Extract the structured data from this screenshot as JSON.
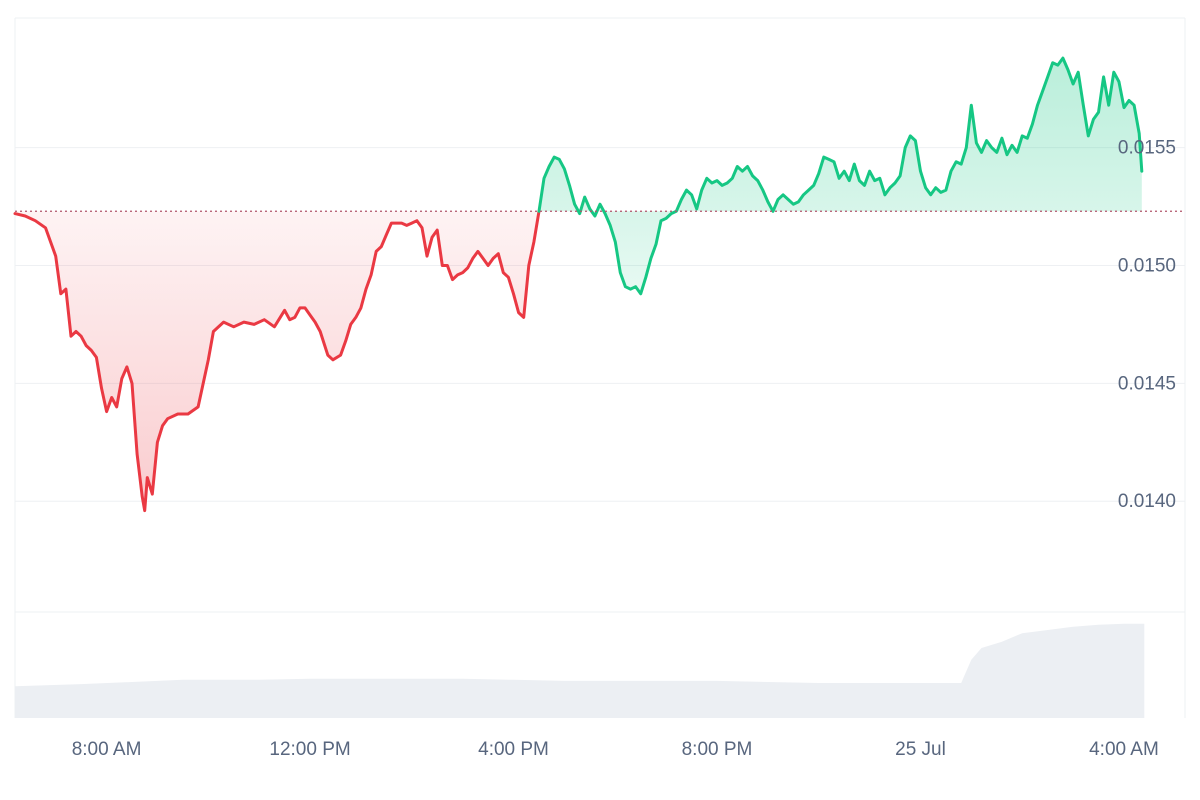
{
  "chart_data": {
    "type": "area",
    "title": "",
    "xlabel": "",
    "ylabel": "",
    "baseline": 0.01523,
    "ylim": [
      0.01353,
      0.01605
    ],
    "xlim": [
      6.2,
      29.2
    ],
    "x_axis_unit": "hours since 24 Jul 00:00",
    "x_ticks": [
      {
        "x": 8,
        "label": "8:00 AM"
      },
      {
        "x": 12,
        "label": "12:00 PM"
      },
      {
        "x": 16,
        "label": "4:00 PM"
      },
      {
        "x": 20,
        "label": "8:00 PM"
      },
      {
        "x": 24,
        "label": "25 Jul"
      },
      {
        "x": 28,
        "label": "4:00 AM"
      }
    ],
    "y_ticks": [
      {
        "y": 0.0155,
        "label": "0.0155"
      },
      {
        "y": 0.015,
        "label": "0.0150"
      },
      {
        "y": 0.0145,
        "label": "0.0145"
      },
      {
        "y": 0.014,
        "label": "0.0140"
      }
    ],
    "grid": true,
    "colors": {
      "up_line": "#16c784",
      "up_fill": "#16c784",
      "down_line": "#ea3943",
      "down_fill": "#ea3943",
      "baseline": "#b0546a",
      "grid": "#eef0f3",
      "tick_text": "#58667e",
      "volume": "#eceff3"
    },
    "series": [
      {
        "points": [
          [
            6.2,
            0.01522
          ],
          [
            6.4,
            0.01521
          ],
          [
            6.6,
            0.01519
          ],
          [
            6.8,
            0.01516
          ],
          [
            7.0,
            0.01504
          ],
          [
            7.1,
            0.01488
          ],
          [
            7.2,
            0.0149
          ],
          [
            7.3,
            0.0147
          ],
          [
            7.4,
            0.01472
          ],
          [
            7.5,
            0.0147
          ],
          [
            7.6,
            0.01466
          ],
          [
            7.7,
            0.01464
          ],
          [
            7.8,
            0.01461
          ],
          [
            7.9,
            0.01448
          ],
          [
            8.0,
            0.01438
          ],
          [
            8.1,
            0.01444
          ],
          [
            8.2,
            0.0144
          ],
          [
            8.3,
            0.01452
          ],
          [
            8.4,
            0.01457
          ],
          [
            8.5,
            0.0145
          ],
          [
            8.6,
            0.0142
          ],
          [
            8.7,
            0.01402
          ],
          [
            8.75,
            0.01396
          ],
          [
            8.8,
            0.0141
          ],
          [
            8.9,
            0.01403
          ],
          [
            9.0,
            0.01425
          ],
          [
            9.1,
            0.01432
          ],
          [
            9.2,
            0.01435
          ],
          [
            9.4,
            0.01437
          ],
          [
            9.6,
            0.01437
          ],
          [
            9.8,
            0.0144
          ],
          [
            10.0,
            0.0146
          ],
          [
            10.1,
            0.01472
          ],
          [
            10.3,
            0.01476
          ],
          [
            10.5,
            0.01474
          ],
          [
            10.7,
            0.01476
          ],
          [
            10.9,
            0.01475
          ],
          [
            11.1,
            0.01477
          ],
          [
            11.3,
            0.01474
          ],
          [
            11.5,
            0.01481
          ],
          [
            11.6,
            0.01477
          ],
          [
            11.7,
            0.01478
          ],
          [
            11.8,
            0.01482
          ],
          [
            11.9,
            0.01482
          ],
          [
            12.0,
            0.01479
          ],
          [
            12.1,
            0.01476
          ],
          [
            12.2,
            0.01472
          ],
          [
            12.35,
            0.01462
          ],
          [
            12.45,
            0.0146
          ],
          [
            12.6,
            0.01462
          ],
          [
            12.7,
            0.01468
          ],
          [
            12.8,
            0.01475
          ],
          [
            12.9,
            0.01478
          ],
          [
            13.0,
            0.01482
          ],
          [
            13.1,
            0.0149
          ],
          [
            13.2,
            0.01496
          ],
          [
            13.3,
            0.01506
          ],
          [
            13.4,
            0.01508
          ],
          [
            13.5,
            0.01513
          ],
          [
            13.6,
            0.01518
          ],
          [
            13.8,
            0.01518
          ],
          [
            13.9,
            0.01517
          ],
          [
            14.0,
            0.01518
          ],
          [
            14.1,
            0.01519
          ],
          [
            14.2,
            0.01516
          ],
          [
            14.3,
            0.01504
          ],
          [
            14.4,
            0.01512
          ],
          [
            14.5,
            0.01515
          ],
          [
            14.6,
            0.015
          ],
          [
            14.7,
            0.015
          ],
          [
            14.8,
            0.01494
          ],
          [
            14.9,
            0.01496
          ],
          [
            15.0,
            0.01497
          ],
          [
            15.1,
            0.01499
          ],
          [
            15.2,
            0.01503
          ],
          [
            15.3,
            0.01506
          ],
          [
            15.4,
            0.01503
          ],
          [
            15.5,
            0.015
          ],
          [
            15.6,
            0.01503
          ],
          [
            15.7,
            0.01505
          ],
          [
            15.8,
            0.01497
          ],
          [
            15.9,
            0.01495
          ],
          [
            16.0,
            0.01488
          ],
          [
            16.1,
            0.0148
          ],
          [
            16.2,
            0.01478
          ],
          [
            16.3,
            0.015
          ],
          [
            16.4,
            0.0151
          ],
          [
            16.5,
            0.01523
          ]
        ]
      },
      {
        "points": [
          [
            16.5,
            0.01523
          ],
          [
            16.6,
            0.01537
          ],
          [
            16.7,
            0.01542
          ],
          [
            16.8,
            0.01546
          ],
          [
            16.9,
            0.01545
          ],
          [
            17.0,
            0.01541
          ],
          [
            17.1,
            0.01534
          ],
          [
            17.2,
            0.01526
          ],
          [
            17.3,
            0.01522
          ],
          [
            17.4,
            0.01529
          ],
          [
            17.5,
            0.01524
          ],
          [
            17.6,
            0.01521
          ],
          [
            17.7,
            0.01526
          ],
          [
            17.8,
            0.01522
          ],
          [
            17.9,
            0.01517
          ],
          [
            18.0,
            0.0151
          ],
          [
            18.1,
            0.01497
          ],
          [
            18.2,
            0.01491
          ],
          [
            18.3,
            0.0149
          ],
          [
            18.4,
            0.01491
          ],
          [
            18.5,
            0.01488
          ],
          [
            18.6,
            0.01495
          ],
          [
            18.7,
            0.01503
          ],
          [
            18.8,
            0.01509
          ],
          [
            18.9,
            0.01519
          ],
          [
            19.0,
            0.0152
          ],
          [
            19.1,
            0.01522
          ],
          [
            19.2,
            0.01523
          ],
          [
            19.3,
            0.01528
          ],
          [
            19.4,
            0.01532
          ],
          [
            19.5,
            0.0153
          ],
          [
            19.6,
            0.01524
          ],
          [
            19.7,
            0.01532
          ],
          [
            19.8,
            0.01537
          ],
          [
            19.9,
            0.01535
          ],
          [
            20.0,
            0.01536
          ],
          [
            20.1,
            0.01534
          ],
          [
            20.2,
            0.01535
          ],
          [
            20.3,
            0.01537
          ],
          [
            20.4,
            0.01542
          ],
          [
            20.5,
            0.0154
          ],
          [
            20.6,
            0.01542
          ],
          [
            20.7,
            0.01538
          ],
          [
            20.8,
            0.01536
          ],
          [
            20.9,
            0.01532
          ],
          [
            21.0,
            0.01527
          ],
          [
            21.1,
            0.01523
          ],
          [
            21.2,
            0.01528
          ],
          [
            21.3,
            0.0153
          ],
          [
            21.4,
            0.01528
          ],
          [
            21.5,
            0.01526
          ],
          [
            21.6,
            0.01527
          ],
          [
            21.7,
            0.0153
          ],
          [
            21.8,
            0.01532
          ],
          [
            21.9,
            0.01534
          ],
          [
            22.0,
            0.01539
          ],
          [
            22.1,
            0.01546
          ],
          [
            22.2,
            0.01545
          ],
          [
            22.3,
            0.01544
          ],
          [
            22.4,
            0.01537
          ],
          [
            22.5,
            0.0154
          ],
          [
            22.6,
            0.01536
          ],
          [
            22.7,
            0.01543
          ],
          [
            22.8,
            0.01536
          ],
          [
            22.9,
            0.01534
          ],
          [
            23.0,
            0.0154
          ],
          [
            23.1,
            0.01536
          ],
          [
            23.2,
            0.01537
          ],
          [
            23.3,
            0.0153
          ],
          [
            23.4,
            0.01533
          ],
          [
            23.5,
            0.01535
          ],
          [
            23.6,
            0.01538
          ],
          [
            23.7,
            0.0155
          ],
          [
            23.8,
            0.01555
          ],
          [
            23.9,
            0.01553
          ],
          [
            24.0,
            0.0154
          ],
          [
            24.1,
            0.01533
          ],
          [
            24.2,
            0.0153
          ],
          [
            24.3,
            0.01533
          ],
          [
            24.4,
            0.01531
          ],
          [
            24.5,
            0.01532
          ],
          [
            24.6,
            0.0154
          ],
          [
            24.7,
            0.01544
          ],
          [
            24.8,
            0.01543
          ],
          [
            24.9,
            0.0155
          ],
          [
            25.0,
            0.01568
          ],
          [
            25.1,
            0.01552
          ],
          [
            25.2,
            0.01548
          ],
          [
            25.3,
            0.01553
          ],
          [
            25.4,
            0.0155
          ],
          [
            25.5,
            0.01548
          ],
          [
            25.6,
            0.01554
          ],
          [
            25.7,
            0.01547
          ],
          [
            25.8,
            0.01551
          ],
          [
            25.9,
            0.01548
          ],
          [
            26.0,
            0.01555
          ],
          [
            26.1,
            0.01554
          ],
          [
            26.2,
            0.0156
          ],
          [
            26.3,
            0.01568
          ],
          [
            26.4,
            0.01574
          ],
          [
            26.5,
            0.0158
          ],
          [
            26.6,
            0.01586
          ],
          [
            26.7,
            0.01585
          ],
          [
            26.8,
            0.01588
          ],
          [
            26.9,
            0.01583
          ],
          [
            27.0,
            0.01577
          ],
          [
            27.1,
            0.01582
          ],
          [
            27.2,
            0.01568
          ],
          [
            27.3,
            0.01555
          ],
          [
            27.4,
            0.01562
          ],
          [
            27.5,
            0.01565
          ],
          [
            27.6,
            0.0158
          ],
          [
            27.7,
            0.01568
          ],
          [
            27.8,
            0.01582
          ],
          [
            27.9,
            0.01578
          ],
          [
            28.0,
            0.01567
          ],
          [
            28.1,
            0.0157
          ],
          [
            28.2,
            0.01568
          ],
          [
            28.3,
            0.01556
          ],
          [
            28.35,
            0.0154
          ]
        ]
      }
    ],
    "volume": {
      "x": [
        6.2,
        7.5,
        8.5,
        9.5,
        10.0,
        11.0,
        12.0,
        13.0,
        14.0,
        15.0,
        16.0,
        17.0,
        18.0,
        19.0,
        20.0,
        21.0,
        22.0,
        23.0,
        24.0,
        24.4,
        24.8,
        25.0,
        25.2,
        25.6,
        26.0,
        26.5,
        27.0,
        27.5,
        28.0,
        28.4
      ],
      "values": [
        0.3,
        0.32,
        0.34,
        0.36,
        0.36,
        0.36,
        0.37,
        0.37,
        0.37,
        0.37,
        0.36,
        0.35,
        0.35,
        0.35,
        0.35,
        0.34,
        0.33,
        0.33,
        0.33,
        0.33,
        0.33,
        0.55,
        0.66,
        0.72,
        0.8,
        0.83,
        0.86,
        0.88,
        0.89,
        0.89
      ]
    }
  }
}
